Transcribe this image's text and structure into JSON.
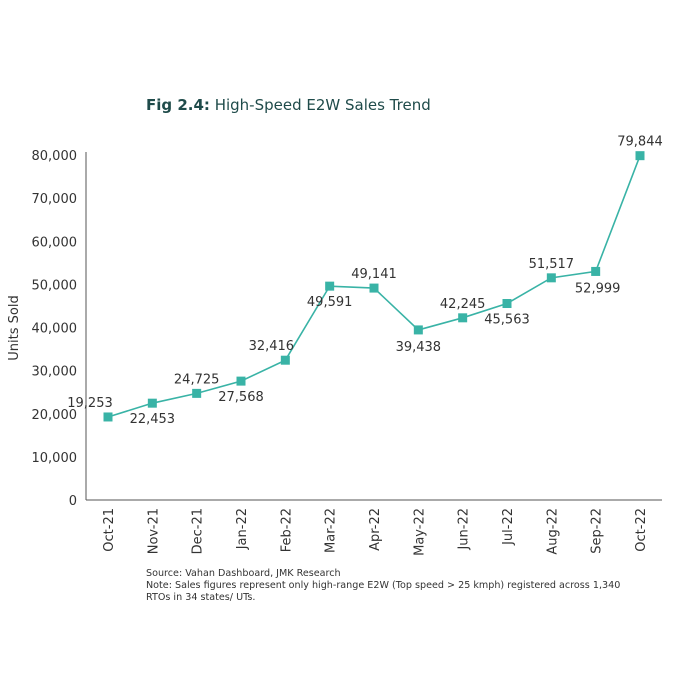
{
  "figure": {
    "number": "Fig 2.4:",
    "title": " High-Speed E2W Sales Trend"
  },
  "notes": {
    "source": "Source: Vahan Dashboard, JMK Research",
    "note": "Note: Sales figures represent only high-range E2W (Top speed > 25 kmph) registered across 1,340 RTOs in 34 states/ UTs."
  },
  "colors": {
    "line": "#39b3a6",
    "marker": "#39b3a6",
    "axis": "#555555",
    "text": "#333333"
  },
  "chart_data": {
    "type": "line",
    "title": "High-Speed E2W Sales Trend",
    "xlabel": "",
    "ylabel": "Units Sold",
    "ylim": [
      0,
      80000
    ],
    "yticks": [
      0,
      10000,
      20000,
      30000,
      40000,
      50000,
      60000,
      70000,
      80000
    ],
    "ytick_labels": [
      "0",
      "10,000",
      "20,000",
      "30,000",
      "40,000",
      "50,000",
      "60,000",
      "70,000",
      "80,000"
    ],
    "grid": false,
    "categories": [
      "Oct-21",
      "Nov-21",
      "Dec-21",
      "Jan-22",
      "Feb-22",
      "Mar-22",
      "Apr-22",
      "May-22",
      "Jun-22",
      "Jul-22",
      "Aug-22",
      "Sep-22",
      "Oct-22"
    ],
    "series": [
      {
        "values": [
          19253,
          22453,
          24725,
          27568,
          32416,
          49591,
          49141,
          39438,
          42245,
          45563,
          51517,
          52999,
          79844
        ],
        "labels": [
          "19,253",
          "22,453",
          "24,725",
          "27,568",
          "32,416",
          "49,591",
          "49,141",
          "39,438",
          "42,245",
          "45,563",
          "51,517",
          "52,999",
          "79,844"
        ]
      }
    ]
  }
}
